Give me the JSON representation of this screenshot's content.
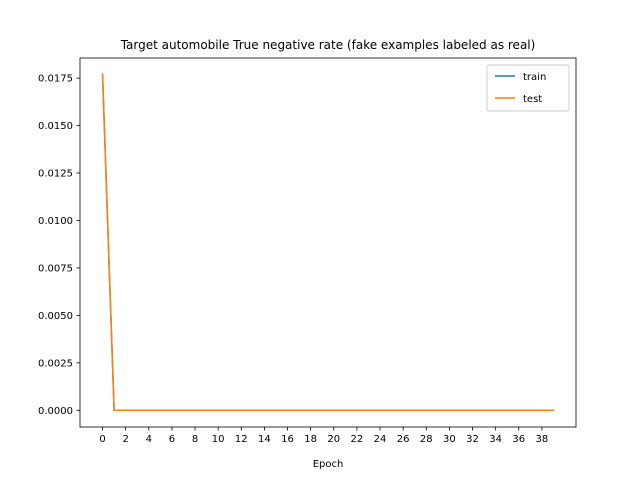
{
  "chart_data": {
    "type": "line",
    "title": "Target automobile True negative rate (fake examples labeled as real)",
    "xlabel": "Epoch",
    "ylabel": "",
    "xlim": [
      -1.95,
      40.95
    ],
    "ylim": [
      -0.00088,
      0.01856
    ],
    "x_ticks": [
      0,
      2,
      4,
      6,
      8,
      10,
      12,
      14,
      16,
      18,
      20,
      22,
      24,
      26,
      28,
      30,
      32,
      34,
      36,
      38
    ],
    "y_ticks": [
      "0.0000",
      "0.0025",
      "0.0050",
      "0.0075",
      "0.0100",
      "0.0125",
      "0.0150",
      "0.0175"
    ],
    "y_tick_values": [
      0,
      0.0025,
      0.005,
      0.0075,
      0.01,
      0.0125,
      0.015,
      0.0175
    ],
    "x": [
      0,
      1,
      2,
      3,
      4,
      5,
      6,
      7,
      8,
      9,
      10,
      11,
      12,
      13,
      14,
      15,
      16,
      17,
      18,
      19,
      20,
      21,
      22,
      23,
      24,
      25,
      26,
      27,
      28,
      29,
      30,
      31,
      32,
      33,
      34,
      35,
      36,
      37,
      38,
      39
    ],
    "series": [
      {
        "name": "train",
        "color": "#1f77b4",
        "values": [
          0.0177,
          0,
          0,
          0,
          0,
          0,
          0,
          0,
          0,
          0,
          0,
          0,
          0,
          0,
          0,
          0,
          0,
          0,
          0,
          0,
          0,
          0,
          0,
          0,
          0,
          0,
          0,
          0,
          0,
          0,
          0,
          0,
          0,
          0,
          0,
          0,
          0,
          0,
          0,
          0
        ]
      },
      {
        "name": "test",
        "color": "#ff7f0e",
        "values": [
          0.0177,
          0,
          0,
          0,
          0,
          0,
          0,
          0,
          0,
          0,
          0,
          0,
          0,
          0,
          0,
          0,
          0,
          0,
          0,
          0,
          0,
          0,
          0,
          0,
          0,
          0,
          0,
          0,
          0,
          0,
          0,
          0,
          0,
          0,
          0,
          0,
          0,
          0,
          0,
          0
        ]
      }
    ],
    "grid": false,
    "legend": "top-right"
  }
}
